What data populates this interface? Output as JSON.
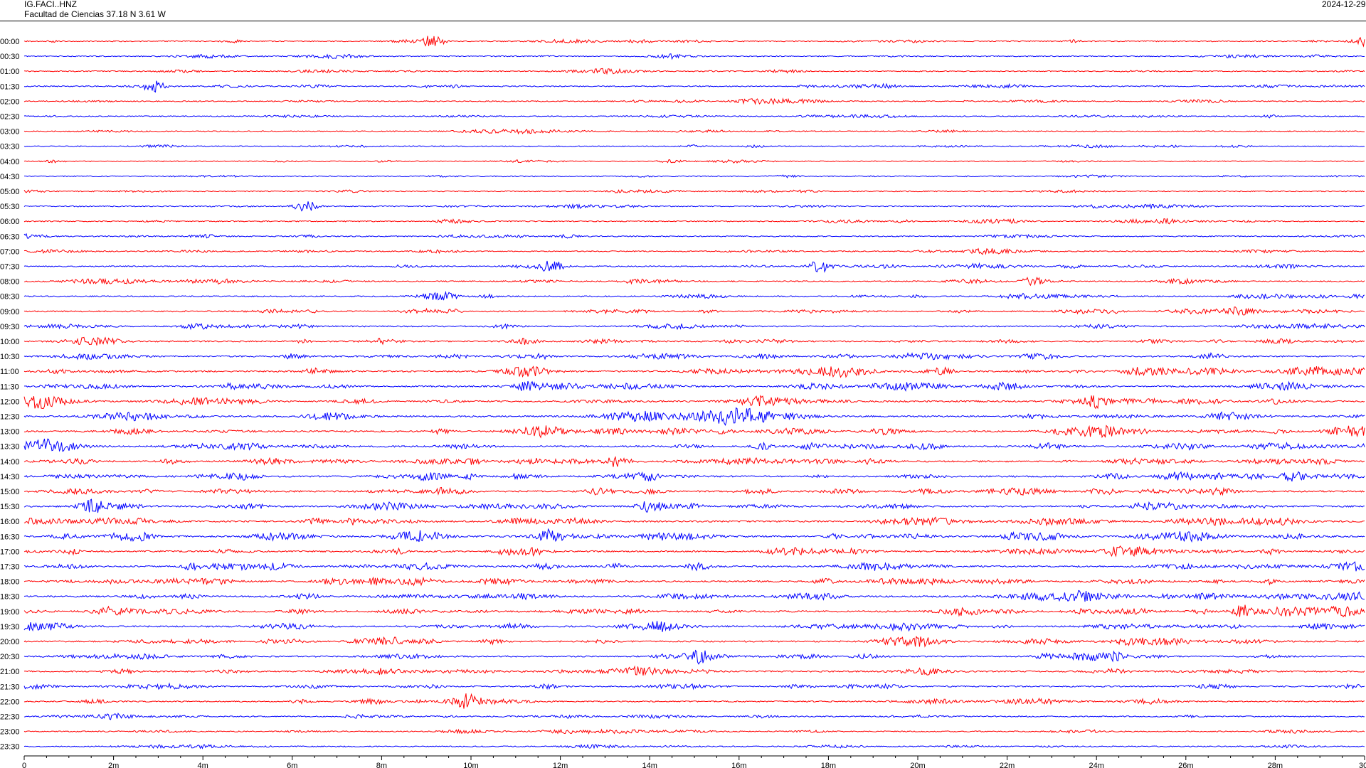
{
  "header": {
    "station_code": "IG.FACI..HNZ",
    "station_description": "Facultad de Ciencias  37.18 N 3.61 W",
    "date": "2024-12-29"
  },
  "colors": {
    "even_trace": "#ff0000",
    "odd_trace": "#0000ff",
    "axis": "#000000",
    "background": "#ffffff"
  },
  "chart_data": {
    "type": "line",
    "title": "",
    "xlabel": "",
    "ylabel": "",
    "x_unit": "minutes",
    "xlim": [
      0,
      30
    ],
    "x_tick_labels": [
      "0",
      "2m",
      "4m",
      "6m",
      "8m",
      "10m",
      "12m",
      "14m",
      "16m",
      "18m",
      "20m",
      "22m",
      "24m",
      "26m",
      "28m",
      "30"
    ],
    "row_labels": [
      "00:00",
      "00:30",
      "01:00",
      "01:30",
      "02:00",
      "02:30",
      "03:00",
      "03:30",
      "04:00",
      "04:30",
      "05:00",
      "05:30",
      "06:00",
      "06:30",
      "07:00",
      "07:30",
      "08:00",
      "08:30",
      "09:00",
      "09:30",
      "10:00",
      "10:30",
      "11:00",
      "11:30",
      "12:00",
      "12:30",
      "13:00",
      "13:30",
      "14:00",
      "14:30",
      "15:00",
      "15:30",
      "16:00",
      "16:30",
      "17:00",
      "17:30",
      "18:00",
      "18:30",
      "19:00",
      "19:30",
      "20:00",
      "20:30",
      "21:00",
      "21:30",
      "22:00",
      "22:30",
      "23:00",
      "23:30"
    ],
    "row_noise_level": [
      0.15,
      0.15,
      0.15,
      0.2,
      0.15,
      0.12,
      0.12,
      0.1,
      0.1,
      0.12,
      0.12,
      0.15,
      0.18,
      0.2,
      0.2,
      0.22,
      0.25,
      0.3,
      0.35,
      0.35,
      0.4,
      0.5,
      0.6,
      0.6,
      0.6,
      0.6,
      0.6,
      0.6,
      0.55,
      0.55,
      0.55,
      0.55,
      0.6,
      0.6,
      0.55,
      0.55,
      0.6,
      0.6,
      0.6,
      0.55,
      0.5,
      0.4,
      0.4,
      0.35,
      0.3,
      0.25,
      0.2,
      0.15
    ],
    "notable_events": [
      {
        "row": "07:30",
        "minute": 11.8,
        "amplitude": 1.0
      },
      {
        "row": "07:30",
        "minute": 17.8,
        "amplitude": 0.8
      },
      {
        "row": "05:30",
        "minute": 6.3,
        "amplitude": 0.8
      },
      {
        "row": "08:00",
        "minute": 22.6,
        "amplitude": 0.7
      },
      {
        "row": "20:30",
        "minute": 15.1,
        "amplitude": 0.9
      },
      {
        "row": "14:00",
        "minute": 13.3,
        "amplitude": 0.8
      },
      {
        "row": "14:30",
        "minute": 28.4,
        "amplitude": 0.8
      },
      {
        "row": "01:30",
        "minute": 2.9,
        "amplitude": 0.7
      },
      {
        "row": "00:00",
        "minute": 9.1,
        "amplitude": 0.6
      },
      {
        "row": "00:00",
        "minute": 29.9,
        "amplitude": 0.6
      },
      {
        "row": "22:00",
        "minute": 9.9,
        "amplitude": 0.7
      },
      {
        "row": "16:30",
        "minute": 11.8,
        "amplitude": 0.7
      },
      {
        "row": "19:00",
        "minute": 27.3,
        "amplitude": 0.7
      },
      {
        "row": "15:30",
        "minute": 1.5,
        "amplitude": 0.7
      }
    ]
  }
}
